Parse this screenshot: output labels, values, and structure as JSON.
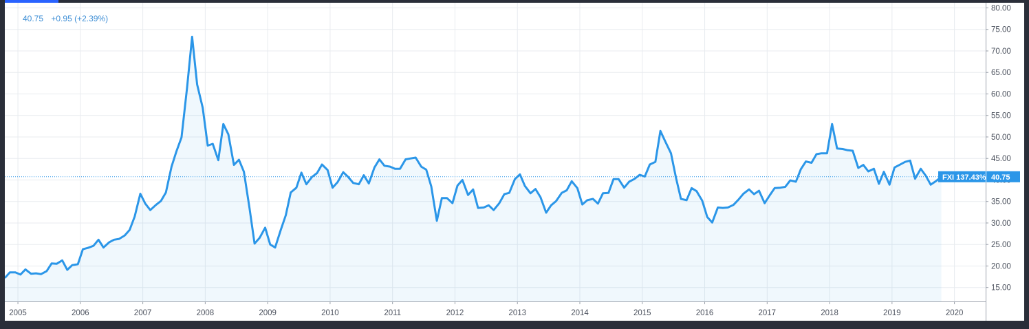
{
  "legend": {
    "last": "40.75",
    "change": "+0.95 (+2.39%)"
  },
  "price_tag": {
    "symbol_label": "FXI 137.43%",
    "value_label": "40.75"
  },
  "colors": {
    "line": "#2b96e8",
    "fill": "#2b96e8",
    "grid": "#e8ebef",
    "tag": "#2b96e8",
    "background": "#2a2e39"
  },
  "chart_data": {
    "type": "area",
    "title": "",
    "xlabel": "",
    "ylabel": "",
    "series": [
      {
        "name": "FXI",
        "x": [
          2004.79,
          2004.87,
          2004.96,
          2005.04,
          2005.12,
          2005.21,
          2005.29,
          2005.37,
          2005.46,
          2005.54,
          2005.62,
          2005.71,
          2005.79,
          2005.87,
          2005.96,
          2006.04,
          2006.12,
          2006.21,
          2006.29,
          2006.37,
          2006.46,
          2006.54,
          2006.62,
          2006.71,
          2006.79,
          2006.87,
          2006.96,
          2007.04,
          2007.12,
          2007.21,
          2007.29,
          2007.37,
          2007.46,
          2007.54,
          2007.62,
          2007.71,
          2007.79,
          2007.87,
          2007.96,
          2008.04,
          2008.12,
          2008.21,
          2008.29,
          2008.37,
          2008.46,
          2008.54,
          2008.62,
          2008.71,
          2008.79,
          2008.87,
          2008.96,
          2009.04,
          2009.12,
          2009.21,
          2009.29,
          2009.37,
          2009.46,
          2009.54,
          2009.62,
          2009.71,
          2009.79,
          2009.87,
          2009.96,
          2010.04,
          2010.12,
          2010.21,
          2010.29,
          2010.37,
          2010.46,
          2010.54,
          2010.62,
          2010.71,
          2010.79,
          2010.87,
          2010.96,
          2011.04,
          2011.12,
          2011.21,
          2011.29,
          2011.37,
          2011.46,
          2011.54,
          2011.62,
          2011.71,
          2011.79,
          2011.87,
          2011.96,
          2012.04,
          2012.12,
          2012.21,
          2012.29,
          2012.37,
          2012.46,
          2012.54,
          2012.62,
          2012.71,
          2012.79,
          2012.87,
          2012.96,
          2013.04,
          2013.12,
          2013.21,
          2013.29,
          2013.37,
          2013.46,
          2013.54,
          2013.62,
          2013.71,
          2013.79,
          2013.87,
          2013.96,
          2014.04,
          2014.12,
          2014.21,
          2014.29,
          2014.37,
          2014.46,
          2014.54,
          2014.62,
          2014.71,
          2014.79,
          2014.87,
          2014.96,
          2015.04,
          2015.12,
          2015.21,
          2015.29,
          2015.37,
          2015.46,
          2015.54,
          2015.62,
          2015.71,
          2015.79,
          2015.87,
          2015.96,
          2016.04,
          2016.12,
          2016.21,
          2016.29,
          2016.37,
          2016.46,
          2016.54,
          2016.62,
          2016.71,
          2016.79,
          2016.87,
          2016.96,
          2017.04,
          2017.12,
          2017.21,
          2017.29,
          2017.37,
          2017.46,
          2017.54,
          2017.62,
          2017.71,
          2017.79,
          2017.87,
          2017.96,
          2018.04,
          2018.12,
          2018.21,
          2018.29,
          2018.37,
          2018.46,
          2018.54,
          2018.62,
          2018.71,
          2018.79,
          2018.87,
          2018.96,
          2019.04,
          2019.12,
          2019.21,
          2019.29,
          2019.37,
          2019.46,
          2019.54,
          2019.62,
          2019.71,
          2019.79
        ],
        "values": [
          17.2,
          18.5,
          18.5,
          18.0,
          19.2,
          18.2,
          18.3,
          18.1,
          18.8,
          20.6,
          20.5,
          21.3,
          19.1,
          20.2,
          20.4,
          23.9,
          24.2,
          24.7,
          26.1,
          24.3,
          25.5,
          26.1,
          26.3,
          27.1,
          28.4,
          31.5,
          36.8,
          34.5,
          33.0,
          34.2,
          35.1,
          37.1,
          43.1,
          46.7,
          49.9,
          61.5,
          73.3,
          62.2,
          56.8,
          48.0,
          48.4,
          44.6,
          53.0,
          50.6,
          43.5,
          44.7,
          41.9,
          33.4,
          25.2,
          26.5,
          28.9,
          25.0,
          24.3,
          28.4,
          31.8,
          37.1,
          38.2,
          41.7,
          39.0,
          40.7,
          41.6,
          43.6,
          42.3,
          38.2,
          39.5,
          41.8,
          40.7,
          39.3,
          39.0,
          41.1,
          39.2,
          42.9,
          44.8,
          43.3,
          43.1,
          42.6,
          42.6,
          44.8,
          45.0,
          45.2,
          43.1,
          42.4,
          38.5,
          30.5,
          35.8,
          35.8,
          34.6,
          38.7,
          40.0,
          36.5,
          37.8,
          33.5,
          33.6,
          34.1,
          33.0,
          34.6,
          36.7,
          37.0,
          40.2,
          41.3,
          38.6,
          36.9,
          37.9,
          36.0,
          32.4,
          34.1,
          35.1,
          37.0,
          37.6,
          39.7,
          38.1,
          34.3,
          35.3,
          35.6,
          34.5,
          36.9,
          37.0,
          40.2,
          40.2,
          38.2,
          39.6,
          40.2,
          41.2,
          40.8,
          43.6,
          44.2,
          51.4,
          48.9,
          46.2,
          40.5,
          35.6,
          35.3,
          38.1,
          37.4,
          35.2,
          31.4,
          30.1,
          33.6,
          33.5,
          33.6,
          34.2,
          35.4,
          36.8,
          37.8,
          36.7,
          37.5,
          34.6,
          36.4,
          38.1,
          38.2,
          38.4,
          39.9,
          39.6,
          42.5,
          44.3,
          44.0,
          46.0,
          46.2,
          46.2,
          53.0,
          47.3,
          47.2,
          46.9,
          46.8,
          42.8,
          43.5,
          42.0,
          42.6,
          39.1,
          41.9,
          38.9,
          42.9,
          43.5,
          44.2,
          44.5,
          40.3,
          42.6,
          41.0,
          38.9,
          39.8,
          40.75
        ]
      }
    ],
    "xlim": [
      2004.79,
      2020.5
    ],
    "ylim": [
      11.75,
      81.2
    ],
    "x_ticks": [
      "2005",
      "2006",
      "2007",
      "2008",
      "2009",
      "2010",
      "2011",
      "2012",
      "2013",
      "2014",
      "2015",
      "2016",
      "2017",
      "2018",
      "2019",
      "2020"
    ],
    "y_ticks": [
      "15.00",
      "20.00",
      "25.00",
      "30.00",
      "35.00",
      "40.00",
      "45.00",
      "50.00",
      "55.00",
      "60.00",
      "65.00",
      "70.00",
      "75.00",
      "80.00"
    ],
    "last_value": 40.75,
    "grid": true,
    "y_axis_position": "right"
  }
}
